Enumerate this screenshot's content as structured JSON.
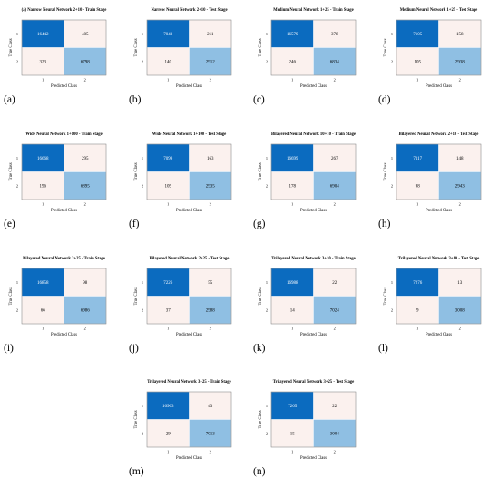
{
  "figure": {
    "ylabel": "True Class",
    "xlabel": "Predicted Class",
    "class_labels": [
      "1",
      "2"
    ]
  },
  "colors": {
    "dark_blue": "#0b6bbf",
    "light_blue": "#8fbfe3",
    "pale": "#fbf1ee",
    "border": "#777777"
  },
  "chart_data": [
    {
      "type": "heatmap",
      "tag": "(a)",
      "title": "(a) Narrow Neural Network 2+10 - Train Stage",
      "rows": [
        "1",
        "2"
      ],
      "cols": [
        "1",
        "2"
      ],
      "values": [
        [
          16442,
          485
        ],
        [
          323,
          6798
        ]
      ],
      "cell_colors": [
        [
          "dark",
          "pale"
        ],
        [
          "pale",
          "light"
        ]
      ]
    },
    {
      "type": "heatmap",
      "tag": "(b)",
      "title": "Narrow Neural Network 2+10 - Test Stage",
      "rows": [
        "1",
        "2"
      ],
      "cols": [
        "1",
        "2"
      ],
      "values": [
        [
          7043,
          211
        ],
        [
          140,
          2912
        ]
      ],
      "cell_colors": [
        [
          "dark",
          "pale"
        ],
        [
          "pale",
          "light"
        ]
      ]
    },
    {
      "type": "heatmap",
      "tag": "(c)",
      "title": "Medium Neural Network 1+25 - Train Stage",
      "rows": [
        "1",
        "2"
      ],
      "cols": [
        "1",
        "2"
      ],
      "values": [
        [
          16579,
          378
        ],
        [
          246,
          6834
        ]
      ],
      "cell_colors": [
        [
          "dark",
          "pale"
        ],
        [
          "pale",
          "light"
        ]
      ]
    },
    {
      "type": "heatmap",
      "tag": "(d)",
      "title": "Medium Neural Network 1+25 - Test Stage",
      "rows": [
        "1",
        "2"
      ],
      "cols": [
        "1",
        "2"
      ],
      "values": [
        [
          7105,
          158
        ],
        [
          105,
          2938
        ]
      ],
      "cell_colors": [
        [
          "dark",
          "pale"
        ],
        [
          "pale",
          "light"
        ]
      ]
    },
    {
      "type": "heatmap",
      "tag": "(e)",
      "title": "Wide Neural Network 1+100 - Train Stage",
      "rows": [
        "1",
        "2"
      ],
      "cols": [
        "1",
        "2"
      ],
      "values": [
        [
          16668,
          295
        ],
        [
          196,
          6895
        ]
      ],
      "cell_colors": [
        [
          "dark",
          "pale"
        ],
        [
          "pale",
          "light"
        ]
      ]
    },
    {
      "type": "heatmap",
      "tag": "(f)",
      "title": "Wide Neural Network 1+100 - Test Stage",
      "rows": [
        "1",
        "2"
      ],
      "cols": [
        "1",
        "2"
      ],
      "values": [
        [
          7099,
          163
        ],
        [
          109,
          2935
        ]
      ],
      "cell_colors": [
        [
          "dark",
          "pale"
        ],
        [
          "pale",
          "light"
        ]
      ]
    },
    {
      "type": "heatmap",
      "tag": "(g)",
      "title": "Bilayered Neural Network 10+10 - Train Stage",
      "rows": [
        "1",
        "2"
      ],
      "cols": [
        "1",
        "2"
      ],
      "values": [
        [
          16699,
          267
        ],
        [
          178,
          6904
        ]
      ],
      "cell_colors": [
        [
          "dark",
          "pale"
        ],
        [
          "pale",
          "light"
        ]
      ]
    },
    {
      "type": "heatmap",
      "tag": "(h)",
      "title": "Bilayered Neural Network 2+10 - Test Stage",
      "rows": [
        "1",
        "2"
      ],
      "cols": [
        "1",
        "2"
      ],
      "values": [
        [
          7117,
          148
        ],
        [
          98,
          2943
        ]
      ],
      "cell_colors": [
        [
          "dark",
          "pale"
        ],
        [
          "pale",
          "light"
        ]
      ]
    },
    {
      "type": "heatmap",
      "tag": "(i)",
      "title": "Bilayered Neural Network 2+25 - Train Stage",
      "rows": [
        "1",
        "2"
      ],
      "cols": [
        "1",
        "2"
      ],
      "values": [
        [
          16858,
          98
        ],
        [
          66,
          6986
        ]
      ],
      "cell_colors": [
        [
          "dark",
          "pale"
        ],
        [
          "pale",
          "light"
        ]
      ]
    },
    {
      "type": "heatmap",
      "tag": "(j)",
      "title": "Bilayered Neural Network 2+25 - Test Stage",
      "rows": [
        "1",
        "2"
      ],
      "cols": [
        "1",
        "2"
      ],
      "values": [
        [
          7226,
          55
        ],
        [
          37,
          2988
        ]
      ],
      "cell_colors": [
        [
          "dark",
          "pale"
        ],
        [
          "pale",
          "light"
        ]
      ]
    },
    {
      "type": "heatmap",
      "tag": "(k)",
      "title": "Trilayered Neural Network 3+10 - Train Stage",
      "rows": [
        "1",
        "2"
      ],
      "cols": [
        "1",
        "2"
      ],
      "values": [
        [
          16988,
          22
        ],
        [
          14,
          7024
        ]
      ],
      "cell_colors": [
        [
          "dark",
          "pale"
        ],
        [
          "pale",
          "light"
        ]
      ]
    },
    {
      "type": "heatmap",
      "tag": "(l)",
      "title": "Trilayered Neural Network 3+10 - Test Stage",
      "rows": [
        "1",
        "2"
      ],
      "cols": [
        "1",
        "2"
      ],
      "values": [
        [
          7276,
          13
        ],
        [
          9,
          3008
        ]
      ],
      "cell_colors": [
        [
          "dark",
          "pale"
        ],
        [
          "pale",
          "light"
        ]
      ]
    },
    {
      "type": "heatmap",
      "tag": "(m)",
      "title": "Trilayered Neural Network 3+25 - Train Stage",
      "rows": [
        "1",
        "2"
      ],
      "cols": [
        "1",
        "2"
      ],
      "values": [
        [
          16963,
          43
        ],
        [
          29,
          7013
        ]
      ],
      "cell_colors": [
        [
          "dark",
          "pale"
        ],
        [
          "pale",
          "light"
        ]
      ]
    },
    {
      "type": "heatmap",
      "tag": "(n)",
      "title": "Trilayered Neural Network 3+25 - Test Stage",
      "rows": [
        "1",
        "2"
      ],
      "cols": [
        "1",
        "2"
      ],
      "values": [
        [
          7265,
          22
        ],
        [
          15,
          3004
        ]
      ],
      "cell_colors": [
        [
          "dark",
          "pale"
        ],
        [
          "pale",
          "light"
        ]
      ]
    }
  ]
}
